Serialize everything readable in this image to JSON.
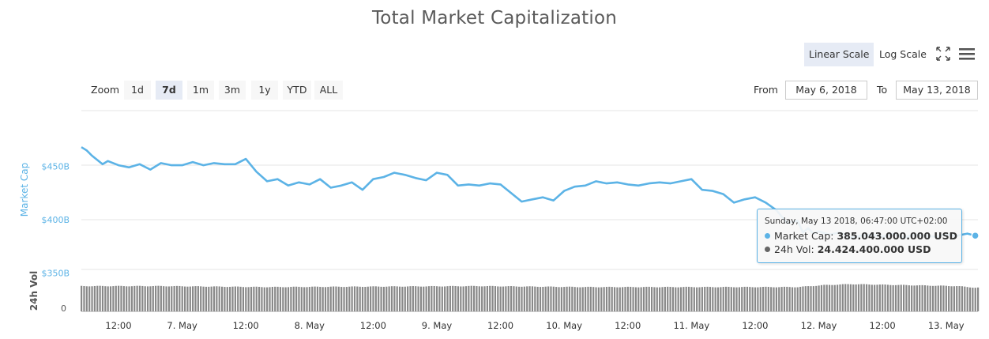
{
  "title": "Total Market Capitalization",
  "scale": {
    "linear_label": "Linear Scale",
    "log_label": "Log Scale",
    "active": "linear"
  },
  "icons": {
    "fullscreen": "fullscreen-icon",
    "menu": "hamburger-menu-icon"
  },
  "zoom": {
    "label": "Zoom",
    "buttons": [
      "1d",
      "7d",
      "1m",
      "3m",
      "1y",
      "YTD",
      "ALL"
    ],
    "active": "7d"
  },
  "range": {
    "from_label": "From",
    "from_value": "May 6, 2018",
    "to_label": "To",
    "to_value": "May 13, 2018"
  },
  "colors": {
    "market_cap": "#5cb3e6",
    "volume": "#888888",
    "grid": "#e6e6e6"
  },
  "tooltip": {
    "header": "Sunday, May 13 2018, 06:47:00 UTC+02:00",
    "rows": [
      {
        "label": "Market Cap: ",
        "value": "385.043.000.000 USD",
        "color": "#5cb3e6"
      },
      {
        "label": "24h Vol: ",
        "value": "24.424.400.000 USD",
        "color": "#666666"
      }
    ]
  },
  "chart_data": {
    "type": "line",
    "x_tick_labels": [
      "12:00",
      "7. May",
      "12:00",
      "8. May",
      "12:00",
      "9. May",
      "12:00",
      "10. May",
      "12:00",
      "11. May",
      "12:00",
      "12. May",
      "12:00",
      "13. May"
    ],
    "y_axis": {
      "label": "Market Cap",
      "ticks": [
        "$350B",
        "$400B",
        "$450B"
      ],
      "unit": "USD billions"
    },
    "volume_axis": {
      "label": "24h Vol",
      "ticks": [
        "0"
      ]
    },
    "grid": true,
    "series": [
      {
        "name": "Market Cap",
        "x_unit": "hours since 6 May 2018 00:00 (local)",
        "x": [
          5,
          6,
          7,
          8,
          9,
          10,
          12,
          14,
          16,
          18,
          20,
          22,
          24,
          26,
          28,
          30,
          32,
          34,
          36,
          38,
          40,
          42,
          44,
          46,
          48,
          50,
          52,
          54,
          56,
          58,
          60,
          62,
          64,
          66,
          68,
          70,
          72,
          74,
          76,
          78,
          80,
          82,
          84,
          86,
          88,
          90,
          92,
          94,
          96,
          98,
          100,
          102,
          104,
          106,
          108,
          110,
          112,
          114,
          116,
          118,
          120,
          122,
          124,
          126,
          128,
          130,
          132,
          134,
          136,
          138,
          140,
          141,
          142,
          143,
          144,
          146,
          148,
          150,
          152,
          154,
          156,
          158,
          160,
          162,
          164,
          166,
          168,
          170,
          172,
          173.5
        ],
        "y": [
          468,
          465,
          460,
          456,
          452,
          455,
          451,
          449,
          452,
          447,
          453,
          451,
          451,
          454,
          451,
          453,
          452,
          452,
          457,
          445,
          436,
          438,
          432,
          435,
          433,
          438,
          430,
          432,
          435,
          428,
          438,
          440,
          444,
          442,
          439,
          437,
          444,
          442,
          432,
          433,
          432,
          434,
          433,
          425,
          417,
          419,
          421,
          418,
          427,
          431,
          432,
          436,
          434,
          435,
          433,
          432,
          434,
          435,
          434,
          436,
          438,
          428,
          427,
          424,
          416,
          419,
          421,
          416,
          409,
          397,
          399,
          388,
          392,
          387,
          389,
          386,
          388,
          383,
          385,
          386,
          384,
          387,
          383,
          386,
          385,
          384,
          386,
          385,
          387,
          385
        ]
      },
      {
        "name": "24h Vol",
        "values_unit": "USD billions",
        "x": [
          5,
          20,
          40,
          60,
          80,
          100,
          120,
          130,
          140,
          145,
          150,
          160,
          170,
          173.5
        ],
        "y": [
          26,
          26,
          25,
          25.5,
          26,
          25,
          25,
          25,
          25,
          27,
          28,
          27,
          26,
          24.4
        ]
      }
    ],
    "highlight": {
      "x": 173.5,
      "y": 385.043
    }
  }
}
